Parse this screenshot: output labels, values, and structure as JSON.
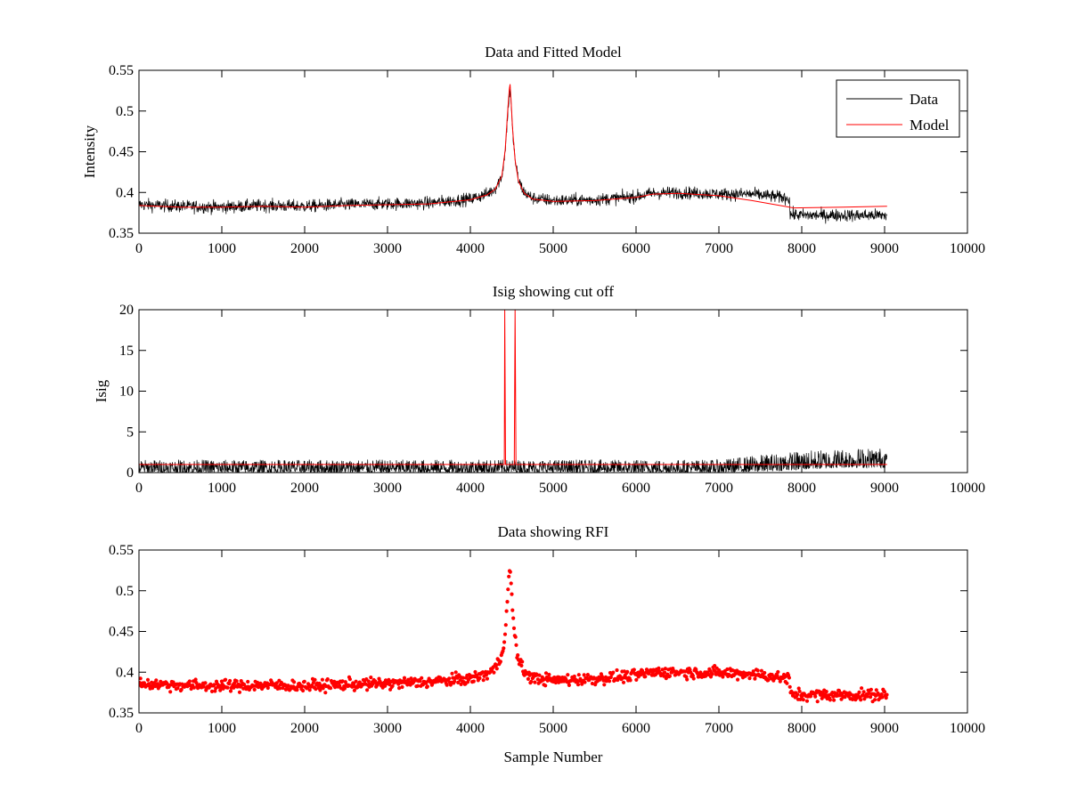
{
  "colors": {
    "data": "#000000",
    "model": "#ff0000",
    "rfi": "#ff0000",
    "axes": "#000000"
  },
  "chart_data": [
    {
      "id": "top",
      "type": "line",
      "title": "Data and Fitted Model",
      "xlabel": "",
      "ylabel": "Intensity",
      "xlim": [
        0,
        10000
      ],
      "ylim": [
        0.35,
        0.55
      ],
      "xticks": [
        0,
        1000,
        2000,
        3000,
        4000,
        5000,
        6000,
        7000,
        8000,
        9000,
        10000
      ],
      "yticks": [
        0.35,
        0.4,
        0.45,
        0.5,
        0.55
      ],
      "ytick_labels": [
        "0.35",
        "0.4",
        "0.45",
        "0.5",
        "0.55"
      ],
      "legend": {
        "placement": "top-right",
        "entries": [
          "Data",
          "Model"
        ]
      },
      "series": [
        {
          "name": "Data",
          "color": "#000000",
          "noise": 0.0055,
          "x": [
            0,
            500,
            1000,
            1500,
            2000,
            2500,
            3000,
            3500,
            4000,
            4200,
            4300,
            4380,
            4420,
            4450,
            4470,
            4480,
            4490,
            4510,
            4540,
            4580,
            4650,
            4750,
            5000,
            5500,
            6000,
            6200,
            6500,
            7000,
            7400,
            7850,
            7860,
            8000,
            8500,
            9000,
            9030
          ],
          "y": [
            0.385,
            0.383,
            0.382,
            0.384,
            0.383,
            0.385,
            0.386,
            0.387,
            0.392,
            0.398,
            0.405,
            0.42,
            0.45,
            0.495,
            0.52,
            0.525,
            0.51,
            0.475,
            0.44,
            0.415,
            0.4,
            0.393,
            0.39,
            0.391,
            0.395,
            0.399,
            0.4,
            0.398,
            0.398,
            0.393,
            0.373,
            0.372,
            0.372,
            0.372,
            0.372
          ]
        },
        {
          "name": "Model",
          "color": "#ff0000",
          "x": [
            0,
            500,
            1000,
            1500,
            2000,
            2500,
            3000,
            3500,
            4000,
            4200,
            4300,
            4380,
            4420,
            4450,
            4470,
            4480,
            4490,
            4510,
            4540,
            4580,
            4650,
            4750,
            5000,
            5500,
            6000,
            6200,
            6500,
            7000,
            7400,
            7850,
            7900,
            8500,
            9030
          ],
          "y": [
            0.384,
            0.382,
            0.382,
            0.383,
            0.382,
            0.384,
            0.385,
            0.386,
            0.391,
            0.397,
            0.404,
            0.42,
            0.452,
            0.5,
            0.527,
            0.533,
            0.515,
            0.478,
            0.44,
            0.414,
            0.399,
            0.392,
            0.389,
            0.39,
            0.394,
            0.398,
            0.399,
            0.396,
            0.39,
            0.382,
            0.381,
            0.382,
            0.383
          ]
        }
      ]
    },
    {
      "id": "middle",
      "type": "line",
      "title": "Isig showing cut off",
      "xlabel": "",
      "ylabel": "Isig",
      "xlim": [
        0,
        10000
      ],
      "ylim": [
        0,
        20
      ],
      "xticks": [
        0,
        1000,
        2000,
        3000,
        4000,
        5000,
        6000,
        7000,
        8000,
        9000,
        10000
      ],
      "yticks": [
        0,
        5,
        10,
        15,
        20
      ],
      "ytick_labels": [
        "0",
        "5",
        "10",
        "15",
        "20"
      ],
      "series": [
        {
          "name": "Isig",
          "color": "#000000",
          "x": [
            0,
            7000,
            7500,
            7900,
            8500,
            9030
          ],
          "y_low": [
            0,
            0,
            0.1,
            0.3,
            0.6,
            0.6
          ],
          "y_high": [
            1.6,
            1.6,
            2.2,
            2.6,
            3.0,
            3.1
          ]
        },
        {
          "name": "cut off",
          "color": "#ff0000",
          "x": [
            0,
            4410,
            4415,
            4425,
            4530,
            4540,
            4550,
            9030
          ],
          "y": [
            1.0,
            1.0,
            20,
            1.0,
            1.0,
            20,
            1.0,
            1.0
          ]
        }
      ]
    },
    {
      "id": "bottom",
      "type": "scatter",
      "title": "Data showing RFI",
      "xlabel": "Sample Number",
      "ylabel": "",
      "xlim": [
        0,
        10000
      ],
      "ylim": [
        0.35,
        0.55
      ],
      "xticks": [
        0,
        1000,
        2000,
        3000,
        4000,
        5000,
        6000,
        7000,
        8000,
        9000,
        10000
      ],
      "yticks": [
        0.35,
        0.4,
        0.45,
        0.5,
        0.55
      ],
      "ytick_labels": [
        "0.35",
        "0.4",
        "0.45",
        "0.5",
        "0.55"
      ],
      "series": [
        {
          "name": "RFI",
          "color": "#ff0000",
          "noise": 0.005,
          "x": [
            0,
            500,
            1000,
            1500,
            2000,
            2500,
            3000,
            3500,
            4000,
            4200,
            4300,
            4380,
            4420,
            4450,
            4470,
            4480,
            4490,
            4510,
            4540,
            4580,
            4650,
            4750,
            5000,
            5500,
            6000,
            6200,
            6500,
            7000,
            7400,
            7850,
            7860,
            8000,
            8500,
            9000,
            9030
          ],
          "y": [
            0.386,
            0.384,
            0.383,
            0.384,
            0.383,
            0.385,
            0.386,
            0.388,
            0.392,
            0.398,
            0.405,
            0.42,
            0.45,
            0.495,
            0.52,
            0.528,
            0.51,
            0.475,
            0.44,
            0.415,
            0.4,
            0.393,
            0.39,
            0.392,
            0.396,
            0.4,
            0.4,
            0.399,
            0.398,
            0.392,
            0.373,
            0.372,
            0.372,
            0.372,
            0.372
          ]
        }
      ]
    }
  ]
}
